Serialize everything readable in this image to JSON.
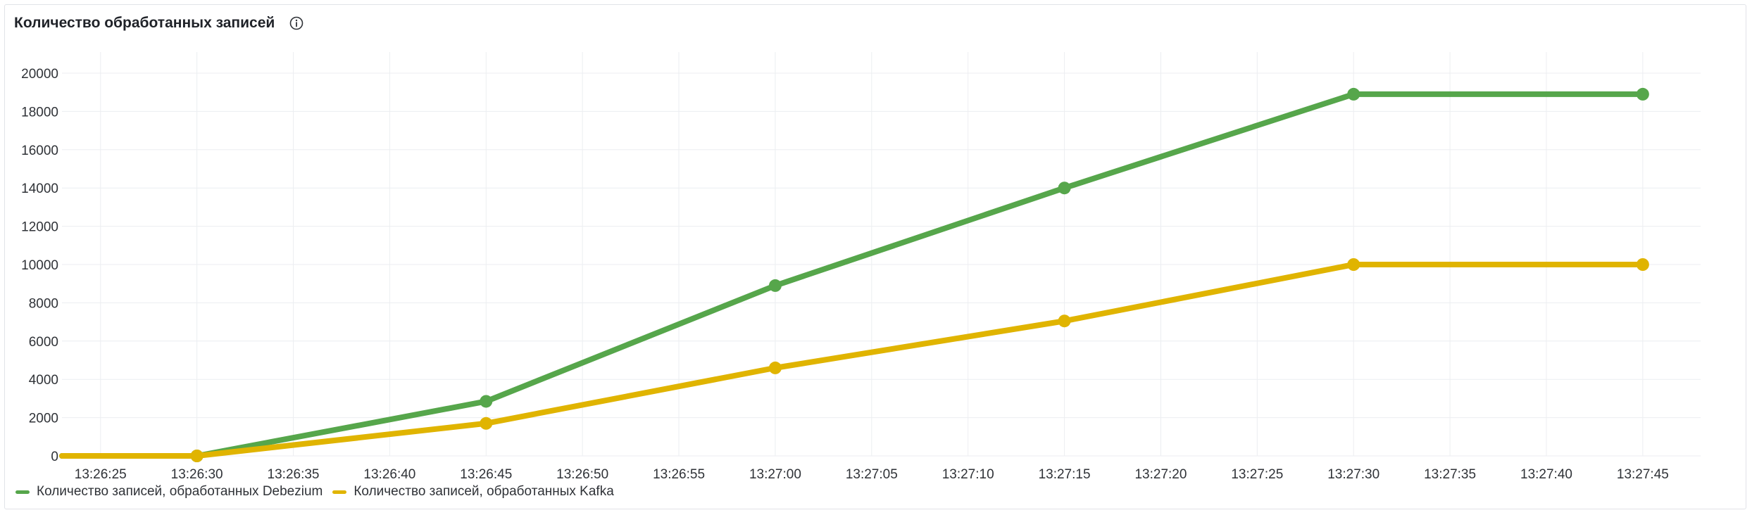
{
  "panel": {
    "title": "Количество обработанных записей",
    "info_icon": "info-circle-icon"
  },
  "chart_data": {
    "type": "line",
    "title": "Количество обработанных записей",
    "xlabel": "",
    "ylabel": "",
    "x_ticks": [
      "13:26:25",
      "13:26:30",
      "13:26:35",
      "13:26:40",
      "13:26:45",
      "13:26:50",
      "13:26:55",
      "13:27:00",
      "13:27:05",
      "13:27:10",
      "13:27:15",
      "13:27:20",
      "13:27:25",
      "13:27:30",
      "13:27:35",
      "13:27:40",
      "13:27:45"
    ],
    "y_ticks": [
      0,
      2000,
      4000,
      6000,
      8000,
      10000,
      12000,
      14000,
      16000,
      18000,
      20000
    ],
    "xlim": [
      "13:26:23",
      "13:27:48"
    ],
    "ylim": [
      0,
      20000
    ],
    "grid": true,
    "legend_position": "bottom-left",
    "series": [
      {
        "name": "Количество записей, обработанных Debezium",
        "color": "#56a64b",
        "x": [
          "13:26:23",
          "13:26:30",
          "13:26:45",
          "13:27:00",
          "13:27:15",
          "13:27:30",
          "13:27:45"
        ],
        "values": [
          0,
          0,
          2850,
          8900,
          14000,
          18900,
          18900
        ],
        "markers": [
          false,
          true,
          true,
          true,
          true,
          true,
          true
        ]
      },
      {
        "name": "Количество записей, обработанных Kafka",
        "color": "#e0b400",
        "x": [
          "13:26:23",
          "13:26:30",
          "13:26:45",
          "13:27:00",
          "13:27:15",
          "13:27:30",
          "13:27:45"
        ],
        "values": [
          0,
          0,
          1700,
          4600,
          7050,
          10000,
          10000
        ],
        "markers": [
          false,
          true,
          true,
          true,
          true,
          true,
          true
        ]
      }
    ]
  }
}
